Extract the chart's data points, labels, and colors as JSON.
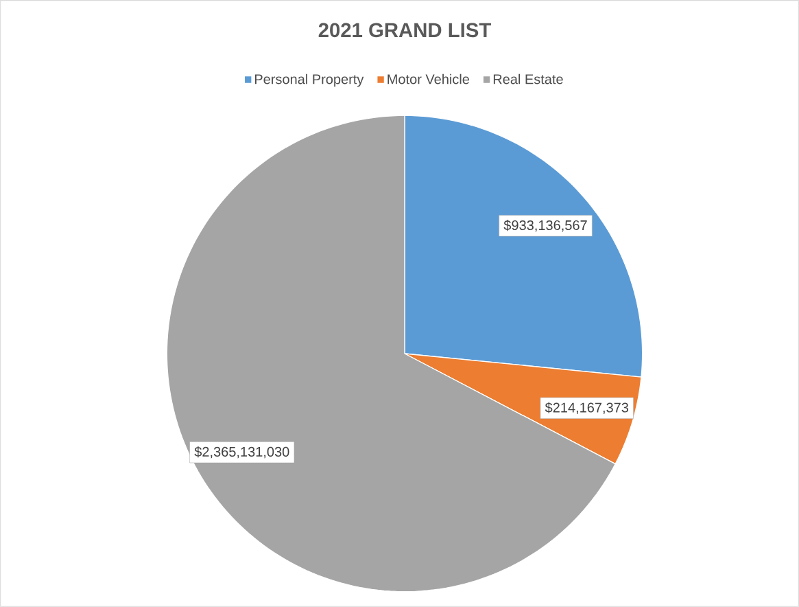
{
  "chart_data": {
    "type": "pie",
    "title": "2021 GRAND LIST",
    "categories": [
      "Personal Property",
      "Motor Vehicle",
      "Real Estate"
    ],
    "values": [
      933136567,
      214167373,
      2365131030
    ],
    "colors": [
      "#5b9bd5",
      "#ed7d31",
      "#a5a5a5"
    ],
    "value_labels": [
      "$933,136,567",
      "$214,167,373",
      "$2,365,131,030"
    ],
    "legend": "top"
  }
}
